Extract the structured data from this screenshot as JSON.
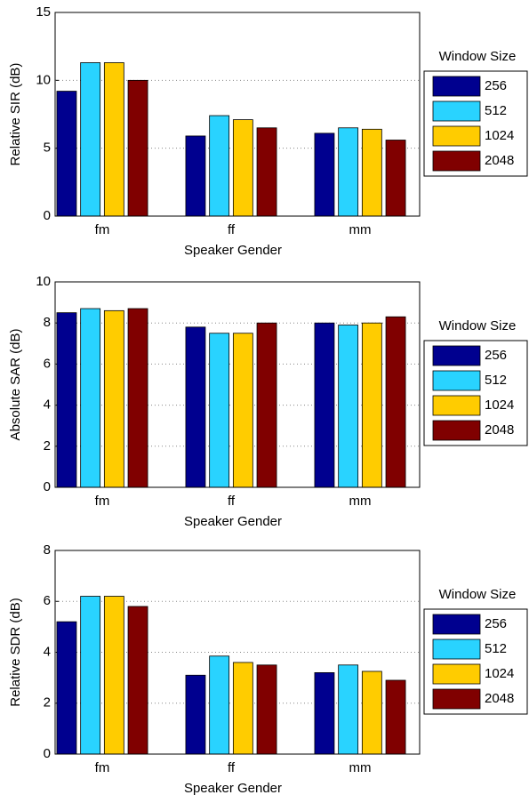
{
  "chart_data": [
    {
      "type": "bar",
      "xlabel": "Speaker Gender",
      "ylabel": "Relative SIR (dB)",
      "legend_title": "Window Size",
      "legend": "right",
      "grid": true,
      "categories": [
        "fm",
        "ff",
        "mm"
      ],
      "ylim": [
        0,
        15
      ],
      "yticks": [
        0,
        5,
        10,
        15
      ],
      "series": [
        {
          "name": "256",
          "color": "#00008f",
          "values": [
            9.2,
            5.9,
            6.1
          ]
        },
        {
          "name": "512",
          "color": "#29d3ff",
          "values": [
            11.3,
            7.4,
            6.5
          ]
        },
        {
          "name": "1024",
          "color": "#ffcc00",
          "values": [
            11.3,
            7.1,
            6.4
          ]
        },
        {
          "name": "2048",
          "color": "#800000",
          "values": [
            10.0,
            6.5,
            5.6
          ]
        }
      ]
    },
    {
      "type": "bar",
      "xlabel": "Speaker Gender",
      "ylabel": "Absolute SAR (dB)",
      "legend_title": "Window Size",
      "legend": "right",
      "grid": true,
      "categories": [
        "fm",
        "ff",
        "mm"
      ],
      "ylim": [
        0,
        10
      ],
      "yticks": [
        0,
        2,
        4,
        6,
        8,
        10
      ],
      "series": [
        {
          "name": "256",
          "color": "#00008f",
          "values": [
            8.5,
            7.8,
            8.0
          ]
        },
        {
          "name": "512",
          "color": "#29d3ff",
          "values": [
            8.7,
            7.5,
            7.9
          ]
        },
        {
          "name": "1024",
          "color": "#ffcc00",
          "values": [
            8.6,
            7.5,
            8.0
          ]
        },
        {
          "name": "2048",
          "color": "#800000",
          "values": [
            8.7,
            8.0,
            8.3
          ]
        }
      ]
    },
    {
      "type": "bar",
      "xlabel": "Speaker Gender",
      "ylabel": "Relative SDR (dB)",
      "legend_title": "Window Size",
      "legend": "right",
      "grid": true,
      "categories": [
        "fm",
        "ff",
        "mm"
      ],
      "ylim": [
        0,
        8
      ],
      "yticks": [
        0,
        2,
        4,
        6,
        8
      ],
      "series": [
        {
          "name": "256",
          "color": "#00008f",
          "values": [
            5.2,
            3.1,
            3.2
          ]
        },
        {
          "name": "512",
          "color": "#29d3ff",
          "values": [
            6.2,
            3.85,
            3.5
          ]
        },
        {
          "name": "1024",
          "color": "#ffcc00",
          "values": [
            6.2,
            3.6,
            3.25
          ]
        },
        {
          "name": "2048",
          "color": "#800000",
          "values": [
            5.8,
            3.5,
            2.9
          ]
        }
      ]
    }
  ]
}
